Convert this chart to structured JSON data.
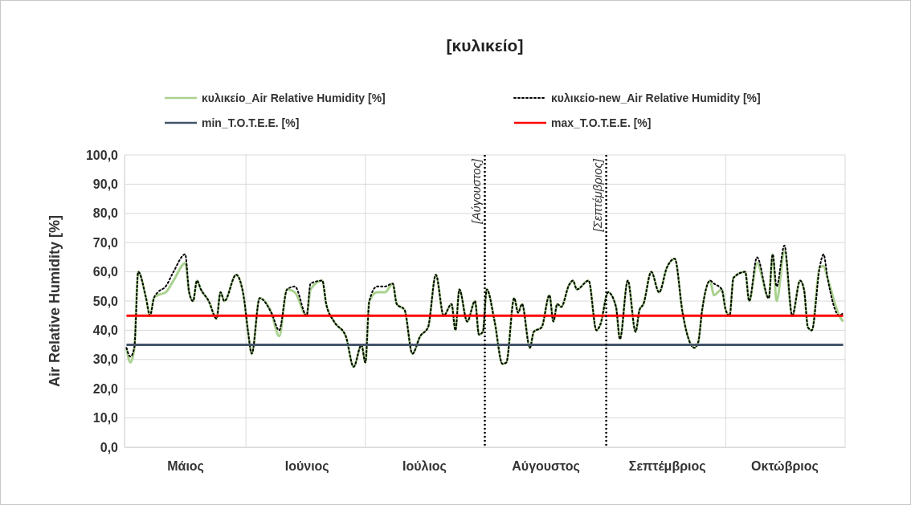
{
  "chart_data": {
    "type": "line",
    "title": "[κυλικείο]",
    "ylabel": "Air Relative Humidity [%]",
    "categories": [
      null,
      null,
      null,
      null,
      null,
      null,
      null,
      null,
      null,
      null,
      null,
      null,
      null,
      null,
      null,
      "Μάιος",
      null,
      null,
      null,
      null,
      null,
      null,
      null,
      null,
      null,
      null,
      null,
      null,
      null,
      null,
      null,
      null,
      null,
      null,
      null,
      null,
      null,
      null,
      null,
      null,
      null,
      null,
      null,
      null,
      null,
      null,
      "Ιούνιος",
      null,
      null,
      null,
      null,
      null,
      null,
      null,
      null,
      null,
      null,
      null,
      null,
      null,
      null,
      null,
      null,
      null,
      null,
      null,
      null,
      null,
      null,
      null,
      null,
      null,
      null,
      null,
      null,
      null,
      "Ιούλιος",
      null,
      null,
      null,
      null,
      null,
      null,
      null,
      null,
      null,
      null,
      null,
      null,
      null,
      null,
      null,
      null,
      null,
      null,
      null,
      null,
      null,
      null,
      null,
      null,
      null,
      null,
      null,
      null,
      null,
      null,
      "Αύγουστος",
      null,
      null,
      null,
      null,
      null,
      null,
      null,
      null,
      null,
      null,
      null,
      null,
      null,
      null,
      null,
      null,
      null,
      null,
      null,
      null,
      null,
      null,
      null,
      null,
      null,
      null,
      null,
      null,
      null,
      null,
      "Σεπτέμβριος",
      null,
      null,
      null,
      null,
      null,
      null,
      null,
      null,
      null,
      null,
      null,
      null,
      null,
      null,
      null,
      null,
      null,
      null,
      null,
      null,
      null,
      null,
      null,
      null,
      null,
      null,
      null,
      null,
      null,
      "Οκτώβριος",
      null,
      null,
      null,
      null,
      null,
      null,
      null,
      null,
      null,
      null,
      null,
      null,
      null,
      null,
      null
    ],
    "ylim": [
      0,
      100
    ],
    "yticks": [
      {
        "value": 0,
        "label": "0,0"
      },
      {
        "value": 10,
        "label": "10,0"
      },
      {
        "value": 20,
        "label": "20,0"
      },
      {
        "value": 30,
        "label": "30,0"
      },
      {
        "value": 40,
        "label": "40,0"
      },
      {
        "value": 50,
        "label": "50,0"
      },
      {
        "value": 60,
        "label": "60,0"
      },
      {
        "value": 70,
        "label": "70,0"
      },
      {
        "value": 80,
        "label": "80,0"
      },
      {
        "value": 90,
        "label": "90,0"
      },
      {
        "value": 100,
        "label": "100,0"
      }
    ],
    "grid": true,
    "legend": "top",
    "series": [
      {
        "name": "κυλικείο_Air Relative Humidity [%]",
        "color": "#a9d18e",
        "line_style": "solid",
        "values": [
          34,
          29,
          34,
          60,
          null,
          51,
          45,
          51,
          52,
          null,
          53,
          null,
          57,
          null,
          null,
          63,
          53,
          50,
          57,
          54,
          null,
          50,
          null,
          44,
          53,
          50,
          null,
          null,
          59,
          57,
          51,
          40,
          32,
          null,
          51,
          null,
          null,
          46,
          null,
          38,
          null,
          54,
          null,
          53,
          null,
          null,
          45,
          54,
          null,
          null,
          57,
          49,
          null,
          43,
          null,
          null,
          38,
          null,
          27.5,
          null,
          35,
          29,
          50,
          null,
          53,
          null,
          53,
          null,
          56,
          49,
          null,
          47,
          null,
          32,
          null,
          38,
          null,
          41,
          null,
          59,
          null,
          45,
          null,
          49,
          40,
          54,
          null,
          43,
          null,
          50,
          38.5,
          39.5,
          54,
          null,
          43,
          null,
          28.5,
          29,
          null,
          51,
          46,
          49,
          null,
          34,
          39.5,
          null,
          41,
          null,
          52,
          43,
          49,
          48,
          null,
          55.5,
          57,
          54,
          null,
          null,
          57,
          null,
          40,
          42,
          null,
          53,
          null,
          48,
          37,
          null,
          57,
          null,
          39.5,
          47,
          49,
          null,
          60,
          null,
          53,
          null,
          61.5,
          null,
          64.5,
          null,
          46,
          39.5,
          null,
          34,
          36,
          47,
          null,
          57,
          52,
          null,
          54,
          47,
          45,
          58,
          null,
          null,
          60,
          50,
          null,
          63,
          null,
          null,
          51,
          66,
          50,
          null,
          67,
          null,
          45,
          null,
          57,
          54,
          41,
          40,
          null,
          61.5,
          62,
          58,
          null,
          null,
          45,
          43
        ]
      },
      {
        "name": "κυλικείο-new_Air Relative Humidity [%]",
        "color": "#000000",
        "line_style": "dotted",
        "values": [
          34,
          31,
          34,
          60,
          null,
          51,
          45,
          51,
          53,
          null,
          55,
          null,
          60,
          null,
          null,
          66,
          53,
          50,
          57,
          54,
          null,
          50,
          null,
          44,
          53,
          50,
          null,
          null,
          59,
          57,
          51,
          40,
          32,
          null,
          51,
          null,
          null,
          46,
          null,
          40,
          null,
          54,
          null,
          55,
          null,
          null,
          45,
          56,
          null,
          null,
          57,
          49,
          null,
          43,
          null,
          null,
          38,
          null,
          27.5,
          null,
          35,
          29,
          50,
          null,
          55,
          null,
          55,
          null,
          56,
          49,
          null,
          47,
          null,
          32,
          null,
          38,
          null,
          41,
          null,
          59,
          null,
          45,
          null,
          49,
          40,
          54,
          null,
          43,
          null,
          50,
          38.5,
          39.5,
          54,
          null,
          43,
          null,
          28.5,
          29,
          null,
          51,
          46,
          49,
          null,
          34,
          39.5,
          null,
          41,
          null,
          52,
          43,
          49,
          48,
          null,
          55.5,
          57,
          54,
          null,
          null,
          57,
          null,
          40,
          42,
          null,
          53,
          null,
          48,
          37,
          null,
          57,
          null,
          39.5,
          47,
          49,
          null,
          60,
          null,
          53,
          null,
          61.5,
          null,
          64.5,
          null,
          46,
          39.5,
          null,
          34,
          36,
          47,
          null,
          57,
          56,
          null,
          54,
          47,
          45,
          58,
          null,
          null,
          60,
          50,
          null,
          65,
          null,
          null,
          51,
          66,
          55,
          null,
          69,
          null,
          45,
          null,
          57,
          54,
          41,
          40,
          null,
          61.5,
          66,
          58,
          null,
          null,
          45,
          46
        ]
      },
      {
        "name": "min_T.O.T.E.E. [%]",
        "color": "#44546a",
        "line_style": "solid",
        "values": [
          35,
          null,
          null,
          null,
          null,
          null,
          null,
          null,
          null,
          null,
          null,
          null,
          null,
          null,
          null,
          null,
          null,
          null,
          null,
          null,
          null,
          null,
          null,
          null,
          null,
          null,
          null,
          null,
          null,
          null,
          null,
          null,
          null,
          null,
          null,
          null,
          null,
          null,
          null,
          null,
          null,
          null,
          null,
          null,
          null,
          null,
          null,
          null,
          null,
          null,
          null,
          null,
          null,
          null,
          null,
          null,
          null,
          null,
          null,
          null,
          null,
          null,
          null,
          null,
          null,
          null,
          null,
          null,
          null,
          null,
          null,
          null,
          null,
          null,
          null,
          null,
          null,
          null,
          null,
          null,
          null,
          null,
          null,
          null,
          null,
          null,
          null,
          null,
          null,
          null,
          null,
          null,
          null,
          null,
          null,
          null,
          null,
          null,
          null,
          null,
          null,
          null,
          null,
          null,
          null,
          null,
          null,
          null,
          null,
          null,
          null,
          null,
          null,
          null,
          null,
          null,
          null,
          null,
          null,
          null,
          null,
          null,
          null,
          null,
          null,
          null,
          null,
          null,
          null,
          null,
          null,
          null,
          null,
          null,
          null,
          null,
          null,
          null,
          null,
          null,
          null,
          null,
          null,
          null,
          null,
          null,
          null,
          null,
          null,
          null,
          null,
          null,
          null,
          null,
          null,
          null,
          null,
          null,
          null,
          null,
          null,
          null,
          null,
          null,
          null,
          null,
          null,
          null,
          null,
          null,
          null,
          null,
          null,
          null,
          null,
          null,
          null,
          null,
          null,
          null,
          null,
          null,
          null,
          35
        ]
      },
      {
        "name": "max_T.O.T.E.E. [%]",
        "color": "#ff0000",
        "line_style": "solid",
        "values": [
          45,
          null,
          null,
          null,
          null,
          null,
          null,
          null,
          null,
          null,
          null,
          null,
          null,
          null,
          null,
          null,
          null,
          null,
          null,
          null,
          null,
          null,
          null,
          null,
          null,
          null,
          null,
          null,
          null,
          null,
          null,
          null,
          null,
          null,
          null,
          null,
          null,
          null,
          null,
          null,
          null,
          null,
          null,
          null,
          null,
          null,
          null,
          null,
          null,
          null,
          null,
          null,
          null,
          null,
          null,
          null,
          null,
          null,
          null,
          null,
          null,
          null,
          null,
          null,
          null,
          null,
          null,
          null,
          null,
          null,
          null,
          null,
          null,
          null,
          null,
          null,
          null,
          null,
          null,
          null,
          null,
          null,
          null,
          null,
          null,
          null,
          null,
          null,
          null,
          null,
          null,
          null,
          null,
          null,
          null,
          null,
          null,
          null,
          null,
          null,
          null,
          null,
          null,
          null,
          null,
          null,
          null,
          null,
          null,
          null,
          null,
          null,
          null,
          null,
          null,
          null,
          null,
          null,
          null,
          null,
          null,
          null,
          null,
          null,
          null,
          null,
          null,
          null,
          null,
          null,
          null,
          null,
          null,
          null,
          null,
          null,
          null,
          null,
          null,
          null,
          null,
          null,
          null,
          null,
          null,
          null,
          null,
          null,
          null,
          null,
          null,
          null,
          null,
          null,
          null,
          null,
          null,
          null,
          null,
          null,
          null,
          null,
          null,
          null,
          null,
          null,
          null,
          null,
          null,
          null,
          null,
          null,
          null,
          null,
          null,
          null,
          null,
          null,
          null,
          null,
          null,
          null,
          null,
          45
        ]
      }
    ],
    "annotations": [
      "[Αύγουστος]",
      "[Σεπτέμβριος]"
    ]
  }
}
